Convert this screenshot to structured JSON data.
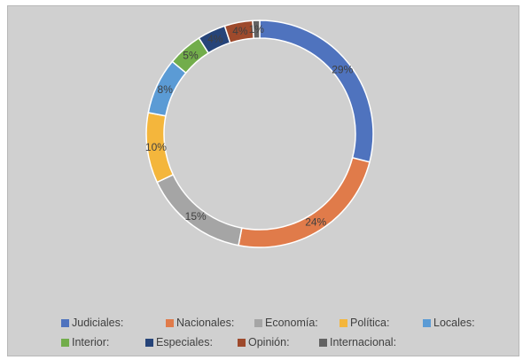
{
  "chart_data": {
    "type": "pie",
    "donut": true,
    "title": "",
    "legend_position": "bottom",
    "slices": [
      {
        "label": "Judiciales:",
        "value": 29,
        "display": "29%",
        "color": "#4f73be"
      },
      {
        "label": "Nacionales:",
        "value": 24,
        "display": "24%",
        "color": "#e07b4a"
      },
      {
        "label": "Economía:",
        "value": 15,
        "display": "15%",
        "color": "#a5a5a5"
      },
      {
        "label": "Política:",
        "value": 10,
        "display": "10%",
        "color": "#f4b63c"
      },
      {
        "label": "Locales:",
        "value": 8,
        "display": "8%",
        "color": "#5b9bd5"
      },
      {
        "label": "Interior:",
        "value": 5,
        "display": "5%",
        "color": "#72ad4b"
      },
      {
        "label": "Especiales:",
        "value": 4,
        "display": "4%",
        "color": "#264479"
      },
      {
        "label": "Opinión:",
        "value": 4,
        "display": "4%",
        "color": "#9e4a2c"
      },
      {
        "label": "Internacional:",
        "value": 1,
        "display": "1%",
        "color": "#636363"
      }
    ]
  }
}
